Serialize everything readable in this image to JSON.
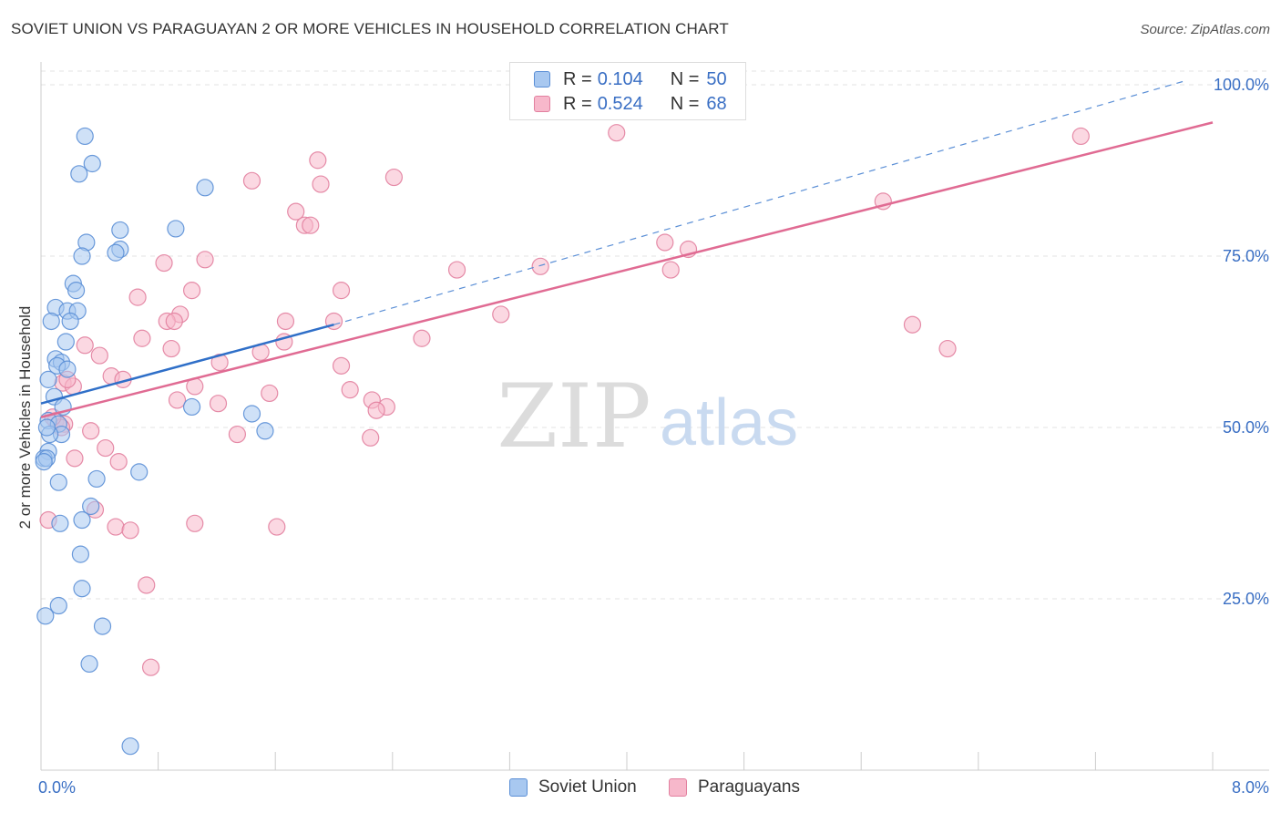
{
  "title": "SOVIET UNION VS PARAGUAYAN 2 OR MORE VEHICLES IN HOUSEHOLD CORRELATION CHART",
  "source": "Source: ZipAtlas.com",
  "watermark": {
    "zip": "ZIP",
    "atlas": "atlas"
  },
  "colors": {
    "soviet_fill": "#a8c8f0",
    "soviet_stroke": "#5b8fd6",
    "soviet_line": "#2f6fc8",
    "para_fill": "#f7b8cb",
    "para_stroke": "#e2809f",
    "para_line": "#e06b93",
    "axis_label": "#3a6fc4",
    "grid": "#e3e3e3"
  },
  "legend": {
    "rows": [
      {
        "r_label": "R =",
        "r_value": "0.104",
        "n_label": "N =",
        "n_value": "50"
      },
      {
        "r_label": "R =",
        "r_value": "0.524",
        "n_label": "N =",
        "n_value": "68"
      }
    ]
  },
  "bottom_legend": {
    "series1": "Soviet Union",
    "series2": "Paraguayans"
  },
  "chart_data": {
    "type": "scatter",
    "title": "SOVIET UNION VS PARAGUAYAN 2 OR MORE VEHICLES IN HOUSEHOLD CORRELATION CHART",
    "xlabel": "",
    "ylabel": "2 or more Vehicles in Household",
    "xlim": [
      0,
      8
    ],
    "ylim": [
      0,
      102
    ],
    "x_tick_labels": [
      {
        "value": 0,
        "label": "0.0%"
      },
      {
        "value": 8,
        "label": "8.0%"
      }
    ],
    "y_tick_labels": [
      {
        "value": 25,
        "label": "25.0%"
      },
      {
        "value": 50,
        "label": "50.0%"
      },
      {
        "value": 75,
        "label": "75.0%"
      },
      {
        "value": 100,
        "label": "100.0%"
      }
    ],
    "series": [
      {
        "name": "Soviet Union",
        "r": 0.104,
        "n": 50,
        "trend": {
          "x0": 0.0,
          "y0": 53.5,
          "x1": 2.0,
          "y1": 65.0,
          "dashed_to_x": 7.8,
          "dashed_to_y": 100.5
        },
        "points": [
          [
            0.3,
            92.5
          ],
          [
            0.35,
            88.5
          ],
          [
            0.26,
            87.0
          ],
          [
            1.12,
            85.0
          ],
          [
            0.54,
            78.8
          ],
          [
            0.92,
            79.0
          ],
          [
            0.31,
            77.0
          ],
          [
            0.54,
            76.0
          ],
          [
            0.28,
            75.0
          ],
          [
            0.51,
            75.5
          ],
          [
            0.22,
            71.0
          ],
          [
            0.24,
            70.0
          ],
          [
            0.1,
            67.5
          ],
          [
            0.18,
            67.0
          ],
          [
            0.25,
            67.0
          ],
          [
            0.07,
            65.5
          ],
          [
            0.2,
            65.5
          ],
          [
            0.17,
            62.5
          ],
          [
            0.1,
            60.0
          ],
          [
            0.14,
            59.5
          ],
          [
            0.11,
            59.0
          ],
          [
            0.18,
            58.5
          ],
          [
            0.05,
            57.0
          ],
          [
            0.09,
            54.5
          ],
          [
            0.05,
            51.0
          ],
          [
            0.12,
            50.5
          ],
          [
            0.14,
            49.0
          ],
          [
            0.06,
            49.0
          ],
          [
            0.05,
            46.5
          ],
          [
            0.02,
            45.5
          ],
          [
            0.04,
            45.5
          ],
          [
            0.02,
            45.0
          ],
          [
            0.67,
            43.5
          ],
          [
            0.38,
            42.5
          ],
          [
            0.12,
            42.0
          ],
          [
            0.34,
            38.5
          ],
          [
            0.28,
            36.5
          ],
          [
            0.13,
            36.0
          ],
          [
            0.27,
            31.5
          ],
          [
            0.28,
            26.5
          ],
          [
            0.12,
            24.0
          ],
          [
            0.03,
            22.5
          ],
          [
            0.42,
            21.0
          ],
          [
            0.33,
            15.5
          ],
          [
            0.61,
            3.5
          ],
          [
            1.03,
            53.0
          ],
          [
            1.44,
            52.0
          ],
          [
            1.53,
            49.5
          ],
          [
            0.15,
            53.0
          ],
          [
            0.04,
            50.0
          ]
        ]
      },
      {
        "name": "Paraguayans",
        "r": 0.524,
        "n": 68,
        "trend": {
          "x0": 0.0,
          "y0": 51.5,
          "x1": 8.0,
          "y1": 94.5
        },
        "points": [
          [
            3.93,
            93.0
          ],
          [
            7.1,
            92.5
          ],
          [
            1.89,
            89.0
          ],
          [
            2.41,
            86.5
          ],
          [
            1.44,
            86.0
          ],
          [
            1.91,
            85.5
          ],
          [
            5.75,
            83.0
          ],
          [
            1.74,
            81.5
          ],
          [
            1.8,
            79.5
          ],
          [
            1.84,
            79.5
          ],
          [
            4.26,
            77.0
          ],
          [
            4.42,
            76.0
          ],
          [
            1.12,
            74.5
          ],
          [
            0.84,
            74.0
          ],
          [
            3.41,
            73.5
          ],
          [
            2.84,
            73.0
          ],
          [
            4.3,
            73.0
          ],
          [
            1.03,
            70.0
          ],
          [
            2.05,
            70.0
          ],
          [
            0.66,
            69.0
          ],
          [
            3.14,
            66.5
          ],
          [
            0.95,
            66.5
          ],
          [
            0.86,
            65.5
          ],
          [
            0.91,
            65.5
          ],
          [
            1.67,
            65.5
          ],
          [
            2.0,
            65.5
          ],
          [
            5.95,
            65.0
          ],
          [
            0.69,
            63.0
          ],
          [
            1.66,
            62.5
          ],
          [
            2.6,
            63.0
          ],
          [
            0.3,
            62.0
          ],
          [
            6.19,
            61.5
          ],
          [
            0.89,
            61.5
          ],
          [
            1.5,
            61.0
          ],
          [
            0.4,
            60.5
          ],
          [
            1.22,
            59.5
          ],
          [
            2.05,
            59.0
          ],
          [
            0.48,
            57.5
          ],
          [
            0.56,
            57.0
          ],
          [
            0.15,
            56.5
          ],
          [
            0.22,
            56.0
          ],
          [
            1.05,
            56.0
          ],
          [
            2.11,
            55.5
          ],
          [
            1.56,
            55.0
          ],
          [
            0.93,
            54.0
          ],
          [
            1.21,
            53.5
          ],
          [
            2.26,
            54.0
          ],
          [
            2.36,
            53.0
          ],
          [
            2.29,
            52.5
          ],
          [
            0.1,
            51.0
          ],
          [
            0.16,
            50.5
          ],
          [
            0.34,
            49.5
          ],
          [
            1.34,
            49.0
          ],
          [
            2.25,
            48.5
          ],
          [
            0.44,
            47.0
          ],
          [
            0.23,
            45.5
          ],
          [
            0.53,
            45.0
          ],
          [
            0.37,
            38.0
          ],
          [
            1.05,
            36.0
          ],
          [
            1.61,
            35.5
          ],
          [
            0.51,
            35.5
          ],
          [
            0.61,
            35.0
          ],
          [
            0.05,
            36.5
          ],
          [
            0.72,
            27.0
          ],
          [
            0.75,
            15.0
          ],
          [
            0.14,
            50.0
          ],
          [
            0.08,
            51.5
          ],
          [
            0.18,
            57.0
          ]
        ]
      }
    ]
  }
}
